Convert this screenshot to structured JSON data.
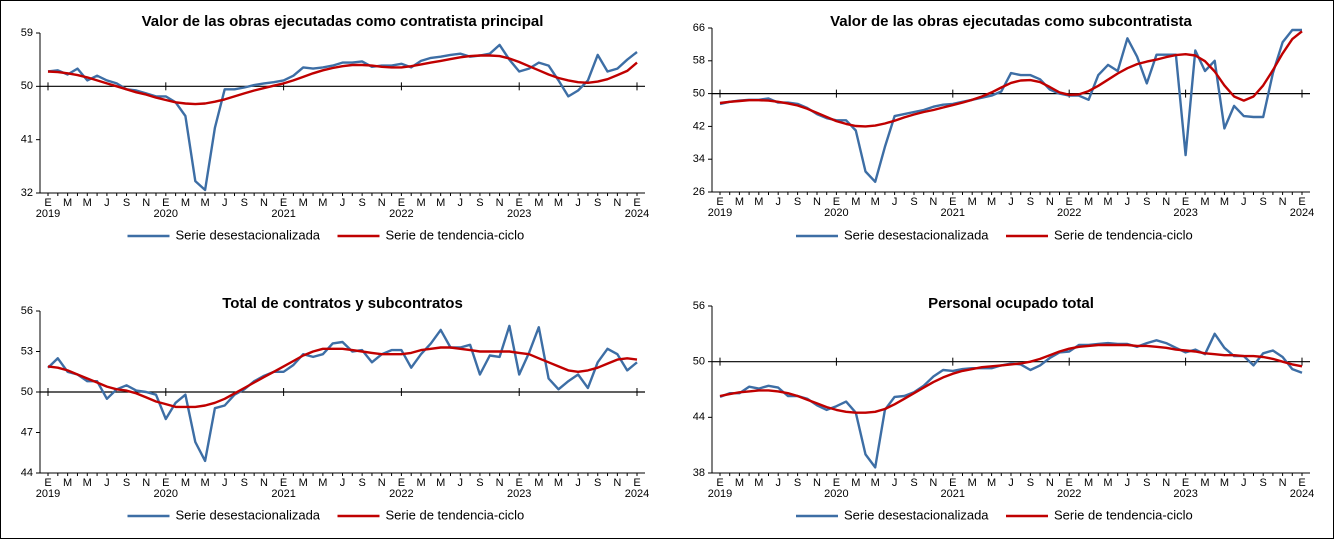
{
  "chart_data": [
    {
      "type": "line",
      "title": "Valor de las obras ejecutadas como contratista principal",
      "categories": [
        "E",
        null,
        "M",
        null,
        "M",
        null,
        "J",
        null,
        "S",
        null,
        "N",
        null,
        "E",
        null,
        "M",
        null,
        "M",
        null,
        "J",
        null,
        "S",
        null,
        "N",
        null,
        "E",
        null,
        "M",
        null,
        "M",
        null,
        "J",
        null,
        "S",
        null,
        "N",
        null,
        "E",
        null,
        "M",
        null,
        "M",
        null,
        "J",
        null,
        "S",
        null,
        "N",
        null,
        "E",
        null,
        "M",
        null,
        "M",
        null,
        "J",
        null,
        "S",
        null,
        "N",
        null,
        "E"
      ],
      "category_years": [
        "2019",
        null,
        null,
        null,
        null,
        null,
        null,
        null,
        null,
        null,
        null,
        null,
        "2020",
        null,
        null,
        null,
        null,
        null,
        null,
        null,
        null,
        null,
        null,
        null,
        "2021",
        null,
        null,
        null,
        null,
        null,
        null,
        null,
        null,
        null,
        null,
        null,
        "2022",
        null,
        null,
        null,
        null,
        null,
        null,
        null,
        null,
        null,
        null,
        null,
        "2023",
        null,
        null,
        null,
        null,
        null,
        null,
        null,
        null,
        null,
        null,
        null,
        "2024"
      ],
      "ylim": [
        32,
        59
      ],
      "yticks": [
        32,
        41,
        50,
        59
      ],
      "reference_line": 50,
      "series": [
        {
          "name": "Serie desestacionalizada",
          "color": "#3d6ea5",
          "values": [
            52.5,
            52.7,
            52,
            53,
            51,
            51.8,
            51,
            50.5,
            49.5,
            49.3,
            48.8,
            48.3,
            48.3,
            47.3,
            45,
            34,
            32.5,
            43,
            49.5,
            49.5,
            49.8,
            50.2,
            50.5,
            50.7,
            51,
            51.8,
            53.2,
            53,
            53.2,
            53.5,
            54,
            54,
            54.2,
            53.3,
            53.5,
            53.5,
            53.8,
            53.2,
            54.3,
            54.8,
            55,
            55.3,
            55.5,
            55,
            55.2,
            55.5,
            57,
            54.5,
            52.5,
            53,
            54,
            53.5,
            51,
            48.3,
            49.3,
            51,
            55.3,
            52.5,
            53,
            54.5,
            55.8
          ]
        },
        {
          "name": "Serie de tendencia-ciclo",
          "color": "#c00000",
          "values": [
            52.5,
            52.4,
            52.2,
            51.9,
            51.5,
            51,
            50.5,
            50,
            49.5,
            49,
            48.6,
            48.1,
            47.7,
            47.3,
            47.1,
            47,
            47.1,
            47.4,
            47.8,
            48.3,
            48.8,
            49.3,
            49.7,
            50.1,
            50.5,
            51,
            51.6,
            52.2,
            52.7,
            53.1,
            53.4,
            53.6,
            53.6,
            53.5,
            53.3,
            53.2,
            53.2,
            53.4,
            53.7,
            54,
            54.3,
            54.6,
            54.9,
            55.1,
            55.2,
            55.2,
            55.1,
            54.7,
            54.1,
            53.4,
            52.7,
            52,
            51.4,
            51,
            50.7,
            50.6,
            50.8,
            51.2,
            51.9,
            52.6,
            54
          ]
        }
      ]
    },
    {
      "type": "line",
      "title": "Valor de las obras ejecutadas como subcontratista",
      "categories": [
        "E",
        null,
        "M",
        null,
        "M",
        null,
        "J",
        null,
        "S",
        null,
        "N",
        null,
        "E",
        null,
        "M",
        null,
        "M",
        null,
        "J",
        null,
        "S",
        null,
        "N",
        null,
        "E",
        null,
        "M",
        null,
        "M",
        null,
        "J",
        null,
        "S",
        null,
        "N",
        null,
        "E",
        null,
        "M",
        null,
        "M",
        null,
        "J",
        null,
        "S",
        null,
        "N",
        null,
        "E",
        null,
        "M",
        null,
        "M",
        null,
        "J",
        null,
        "S",
        null,
        "N",
        null,
        "E"
      ],
      "category_years": [
        "2019",
        null,
        null,
        null,
        null,
        null,
        null,
        null,
        null,
        null,
        null,
        null,
        "2020",
        null,
        null,
        null,
        null,
        null,
        null,
        null,
        null,
        null,
        null,
        null,
        "2021",
        null,
        null,
        null,
        null,
        null,
        null,
        null,
        null,
        null,
        null,
        null,
        "2022",
        null,
        null,
        null,
        null,
        null,
        null,
        null,
        null,
        null,
        null,
        null,
        "2023",
        null,
        null,
        null,
        null,
        null,
        null,
        null,
        null,
        null,
        null,
        null,
        "2024"
      ],
      "ylim": [
        26,
        66
      ],
      "yticks": [
        26,
        34,
        42,
        50,
        58,
        66
      ],
      "reference_line": 50,
      "series": [
        {
          "name": "Serie desestacionalizada",
          "color": "#3d6ea5",
          "values": [
            47.5,
            48,
            48.3,
            48.5,
            48.5,
            48.8,
            47.8,
            47.8,
            47.5,
            46.5,
            45,
            44,
            43.5,
            43.5,
            41,
            31,
            28.5,
            37,
            44.5,
            45,
            45.5,
            46,
            46.8,
            47.3,
            47.5,
            48,
            48.5,
            49,
            49.5,
            50.5,
            55,
            54.5,
            54.5,
            53.5,
            51,
            50,
            49.5,
            49.5,
            48.5,
            54.5,
            57,
            55.5,
            63.5,
            59,
            52.5,
            59.5,
            59.5,
            59.5,
            35,
            60.5,
            55.5,
            58,
            41.5,
            47,
            44.5,
            44.3,
            44.3,
            55,
            62.5,
            65.5,
            65.5
          ]
        },
        {
          "name": "Serie de tendencia-ciclo",
          "color": "#c00000",
          "values": [
            47.7,
            48,
            48.2,
            48.4,
            48.4,
            48.3,
            48,
            47.6,
            47.1,
            46.3,
            45.3,
            44.3,
            43.3,
            42.6,
            42.1,
            42,
            42.2,
            42.7,
            43.4,
            44.2,
            44.9,
            45.5,
            46,
            46.6,
            47.2,
            47.8,
            48.5,
            49.3,
            50.3,
            51.5,
            52.6,
            53.2,
            53.3,
            52.8,
            51.6,
            50.3,
            49.7,
            49.8,
            50.6,
            51.9,
            53.4,
            54.9,
            56.2,
            57.2,
            57.8,
            58.3,
            58.9,
            59.4,
            59.6,
            59.3,
            57.9,
            55.4,
            52,
            49.3,
            48.3,
            49.3,
            52,
            55.7,
            59.8,
            63.3,
            65.2
          ]
        }
      ]
    },
    {
      "type": "line",
      "title": "Total de contratos y subcontratos",
      "categories": [
        "E",
        null,
        "M",
        null,
        "M",
        null,
        "J",
        null,
        "S",
        null,
        "N",
        null,
        "E",
        null,
        "M",
        null,
        "M",
        null,
        "J",
        null,
        "S",
        null,
        "N",
        null,
        "E",
        null,
        "M",
        null,
        "M",
        null,
        "J",
        null,
        "S",
        null,
        "N",
        null,
        "E",
        null,
        "M",
        null,
        "M",
        null,
        "J",
        null,
        "S",
        null,
        "N",
        null,
        "E",
        null,
        "M",
        null,
        "M",
        null,
        "J",
        null,
        "S",
        null,
        "N",
        null,
        "E"
      ],
      "category_years": [
        "2019",
        null,
        null,
        null,
        null,
        null,
        null,
        null,
        null,
        null,
        null,
        null,
        "2020",
        null,
        null,
        null,
        null,
        null,
        null,
        null,
        null,
        null,
        null,
        null,
        "2021",
        null,
        null,
        null,
        null,
        null,
        null,
        null,
        null,
        null,
        null,
        null,
        "2022",
        null,
        null,
        null,
        null,
        null,
        null,
        null,
        null,
        null,
        null,
        null,
        "2023",
        null,
        null,
        null,
        null,
        null,
        null,
        null,
        null,
        null,
        null,
        null,
        "2024"
      ],
      "ylim": [
        44,
        56
      ],
      "yticks": [
        44,
        47,
        50,
        53,
        56
      ],
      "reference_line": 50,
      "series": [
        {
          "name": "Serie desestacionalizada",
          "color": "#3d6ea5",
          "values": [
            51.8,
            52.5,
            51.5,
            51.3,
            50.8,
            50.8,
            49.5,
            50.2,
            50.5,
            50.1,
            50,
            49.8,
            48,
            49.2,
            49.8,
            46.3,
            44.9,
            48.8,
            49,
            49.8,
            50.2,
            50.8,
            51.2,
            51.5,
            51.5,
            52,
            52.8,
            52.6,
            52.8,
            53.6,
            53.7,
            53,
            53.1,
            52.2,
            52.8,
            53.1,
            53.1,
            51.8,
            52.8,
            53.6,
            54.6,
            53.3,
            53.3,
            53.5,
            51.3,
            52.7,
            52.6,
            54.9,
            51.3,
            52.9,
            54.8,
            51,
            50.2,
            50.8,
            51.3,
            50.3,
            52.2,
            53.2,
            52.8,
            51.6,
            52.2
          ]
        },
        {
          "name": "Serie de tendencia-ciclo",
          "color": "#c00000",
          "values": [
            51.9,
            51.8,
            51.6,
            51.3,
            51,
            50.7,
            50.4,
            50.2,
            50.1,
            49.9,
            49.6,
            49.3,
            49.1,
            48.9,
            48.9,
            48.9,
            49,
            49.2,
            49.5,
            49.9,
            50.3,
            50.7,
            51.1,
            51.5,
            51.9,
            52.3,
            52.7,
            53,
            53.2,
            53.2,
            53.2,
            53.1,
            53,
            52.9,
            52.8,
            52.8,
            52.8,
            52.9,
            53.1,
            53.2,
            53.3,
            53.3,
            53.2,
            53.1,
            53,
            53,
            53,
            53,
            52.9,
            52.8,
            52.5,
            52.2,
            51.9,
            51.6,
            51.5,
            51.6,
            51.8,
            52.1,
            52.4,
            52.5,
            52.4
          ]
        }
      ]
    },
    {
      "type": "line",
      "title": "Personal ocupado total",
      "categories": [
        "E",
        null,
        "M",
        null,
        "M",
        null,
        "J",
        null,
        "S",
        null,
        "N",
        null,
        "E",
        null,
        "M",
        null,
        "M",
        null,
        "J",
        null,
        "S",
        null,
        "N",
        null,
        "E",
        null,
        "M",
        null,
        "M",
        null,
        "J",
        null,
        "S",
        null,
        "N",
        null,
        "E",
        null,
        "M",
        null,
        "M",
        null,
        "J",
        null,
        "S",
        null,
        "N",
        null,
        "E",
        null,
        "M",
        null,
        "M",
        null,
        "J",
        null,
        "S",
        null,
        "N",
        null,
        "E"
      ],
      "category_years": [
        "2019",
        null,
        null,
        null,
        null,
        null,
        null,
        null,
        null,
        null,
        null,
        null,
        "2020",
        null,
        null,
        null,
        null,
        null,
        null,
        null,
        null,
        null,
        null,
        null,
        "2021",
        null,
        null,
        null,
        null,
        null,
        null,
        null,
        null,
        null,
        null,
        null,
        "2022",
        null,
        null,
        null,
        null,
        null,
        null,
        null,
        null,
        null,
        null,
        null,
        "2023",
        null,
        null,
        null,
        null,
        null,
        null,
        null,
        null,
        null,
        null,
        null,
        "2024"
      ],
      "ylim": [
        38,
        56
      ],
      "yticks": [
        38,
        44,
        50,
        56
      ],
      "reference_line": 50,
      "series": [
        {
          "name": "Serie desestacionalizada",
          "color": "#3d6ea5",
          "values": [
            46.2,
            46.6,
            46.6,
            47.3,
            47.1,
            47.4,
            47.2,
            46.3,
            46.3,
            46,
            45.3,
            44.8,
            45.2,
            45.7,
            44.5,
            40,
            38.6,
            44.8,
            46.2,
            46.3,
            46.7,
            47.4,
            48.4,
            49.1,
            49,
            49.2,
            49.3,
            49.3,
            49.3,
            49.6,
            49.8,
            49.7,
            49.1,
            49.6,
            50.4,
            51,
            51.1,
            51.8,
            51.8,
            51.9,
            52,
            51.9,
            51.9,
            51.6,
            52,
            52.3,
            52,
            51.5,
            51,
            51.3,
            50.8,
            53,
            51.5,
            50.6,
            50.6,
            49.6,
            50.9,
            51.2,
            50.5,
            49.2,
            48.8
          ]
        },
        {
          "name": "Serie de tendencia-ciclo",
          "color": "#c00000",
          "values": [
            46.3,
            46.5,
            46.7,
            46.8,
            46.9,
            46.9,
            46.8,
            46.6,
            46.3,
            45.9,
            45.5,
            45.1,
            44.8,
            44.6,
            44.5,
            44.5,
            44.6,
            44.9,
            45.4,
            46,
            46.6,
            47.2,
            47.8,
            48.3,
            48.7,
            49,
            49.2,
            49.4,
            49.5,
            49.6,
            49.7,
            49.8,
            50,
            50.3,
            50.7,
            51.1,
            51.4,
            51.6,
            51.7,
            51.8,
            51.8,
            51.8,
            51.8,
            51.7,
            51.7,
            51.6,
            51.5,
            51.3,
            51.2,
            51.1,
            50.9,
            50.8,
            50.7,
            50.7,
            50.6,
            50.6,
            50.5,
            50.3,
            50,
            49.7,
            49.5
          ]
        }
      ]
    }
  ]
}
